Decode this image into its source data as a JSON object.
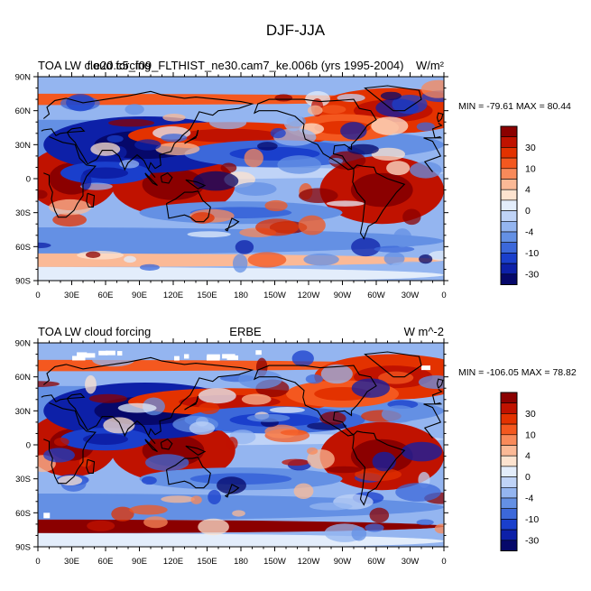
{
  "page": {
    "title": "DJF-JJA"
  },
  "panels": [
    {
      "left_title": "TOA LW cloud forcing",
      "center_title": "f.e20.c5_f09_FLTHIST_ne30.cam7_ke.006b (yrs 1995-2004)",
      "units": "W/m²",
      "stats": "MIN = -79.61 MAX =  80.44"
    },
    {
      "left_title": "TOA LW cloud forcing",
      "center_title": "ERBE",
      "units": "W m^-2",
      "stats": "MIN = -106.05 MAX =  78.82"
    }
  ],
  "chart_data": [
    {
      "type": "heatmap",
      "map": "global cylindrical equidistant, longitude 0-360",
      "title": "f.e20.c5_f09_FLTHIST_ne30.cam7_ke.006b (yrs 1995-2004)",
      "units": "W/m²",
      "xlim": [
        0,
        360
      ],
      "ylim": [
        -90,
        90
      ],
      "xticks": [
        "0",
        "30E",
        "60E",
        "90E",
        "120E",
        "150E",
        "180",
        "150W",
        "120W",
        "90W",
        "60W",
        "30W",
        "0"
      ],
      "yticks": [
        "90N",
        "60N",
        "30N",
        "0",
        "30S",
        "60S",
        "90S"
      ],
      "min": -79.61,
      "max": 80.44,
      "colorbar_labels": [
        "30",
        "10",
        "4",
        "0",
        "-4",
        "-10",
        "-30"
      ],
      "colors": [
        "#8b0000",
        "#c01200",
        "#e33200",
        "#f4581f",
        "#f98a5a",
        "#fbb996",
        "#fde3cf",
        "#e3edfb",
        "#bfd3f7",
        "#94b5f0",
        "#6490e4",
        "#3c68da",
        "#1a3fcc",
        "#0d20a8",
        "#06086a"
      ]
    },
    {
      "type": "heatmap",
      "map": "global cylindrical equidistant, longitude 0-360",
      "title": "ERBE",
      "units": "W m^-2",
      "xlim": [
        0,
        360
      ],
      "ylim": [
        -90,
        90
      ],
      "xticks": [
        "0",
        "30E",
        "60E",
        "90E",
        "120E",
        "150E",
        "180",
        "150W",
        "120W",
        "90W",
        "60W",
        "30W",
        "0"
      ],
      "yticks": [
        "90N",
        "60N",
        "30N",
        "0",
        "30S",
        "60S",
        "90S"
      ],
      "min": -106.05,
      "max": 78.82,
      "colorbar_labels": [
        "30",
        "10",
        "4",
        "0",
        "-4",
        "-10",
        "-30"
      ],
      "colors": [
        "#8b0000",
        "#c01200",
        "#e33200",
        "#f4581f",
        "#f98a5a",
        "#fbb996",
        "#fde3cf",
        "#e3edfb",
        "#bfd3f7",
        "#94b5f0",
        "#6490e4",
        "#3c68da",
        "#1a3fcc",
        "#0d20a8",
        "#06086a"
      ]
    }
  ]
}
